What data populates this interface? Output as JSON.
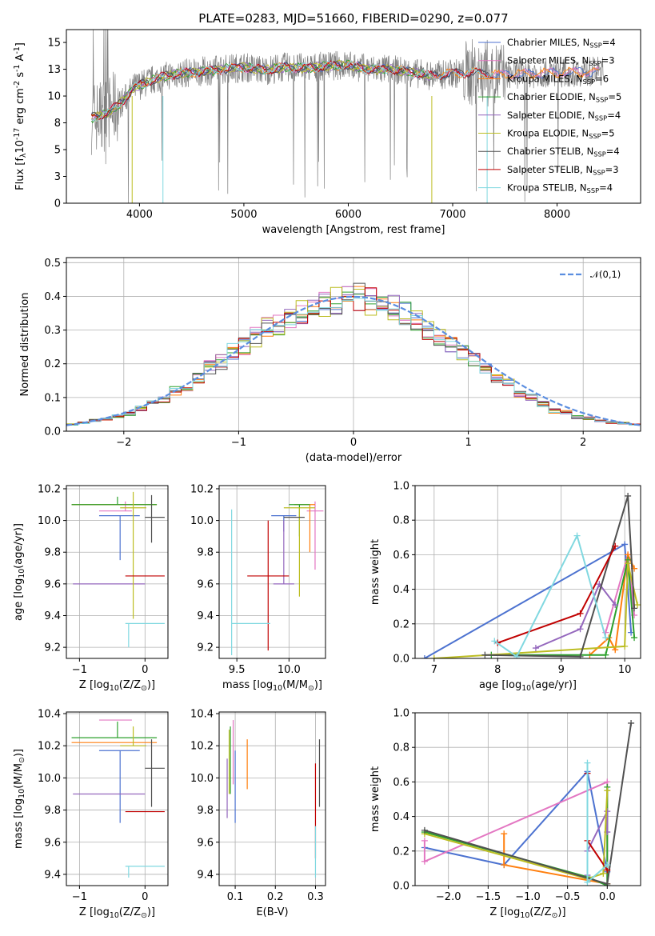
{
  "chart_data": [
    {
      "id": "spectrum",
      "type": "line",
      "title": "PLATE=0283, MJD=51660, FIBERID=0290, z=0.077",
      "xlabel": "wavelength [Angstrom, rest frame]",
      "ylabel": "Flux [f$_{\\lambda}$10$^{-17}$ erg cm$^{-2}$ s$^{-1}$ A$^{-1}$]",
      "xlim": [
        3300,
        8800
      ],
      "ylim": [
        0,
        16.2
      ],
      "xticks": [
        4000,
        5000,
        6000,
        7000,
        8000
      ],
      "yticks": [
        0.0,
        2.5,
        5.0,
        7.5,
        10.0,
        12.5,
        15.0
      ],
      "grid": false,
      "legend_position": "upper right",
      "observed_color": "#808080",
      "continuum": {
        "x": [
          3550,
          3700,
          3850,
          3950,
          4100,
          4300,
          4500,
          4800,
          5000,
          5200,
          5400,
          5600,
          5800,
          6000,
          6200,
          6400,
          6600,
          6800,
          7000,
          7200,
          7400
        ],
        "y": [
          8.0,
          8.4,
          9.6,
          10.8,
          11.4,
          12.0,
          12.2,
          12.5,
          12.7,
          12.4,
          12.7,
          12.6,
          12.8,
          12.9,
          12.5,
          12.5,
          12.2,
          11.9,
          12.1,
          12.2,
          12.0
        ]
      },
      "series": [
        {
          "name": "Chabrier MILES, N$_{SSP}$=4",
          "color": "#4c72d0",
          "x_end": 8400
        },
        {
          "name": "Salpeter MILES, N$_{SSP}$=3",
          "color": "#e377c2",
          "x_end": 8400
        },
        {
          "name": "Kroupa MILES, N$_{SSP}$=6",
          "color": "#ff7f0e",
          "x_end": 8400
        },
        {
          "name": "Chabrier ELODIE, N$_{SSP}$=5",
          "color": "#2ca02c",
          "x_end": 6800
        },
        {
          "name": "Salpeter ELODIE, N$_{SSP}$=4",
          "color": "#9467bd",
          "x_end": 6800
        },
        {
          "name": "Kroupa ELODIE, N$_{SSP}$=5",
          "color": "#bcbd22",
          "x_end": 6800
        },
        {
          "name": "Chabrier STELIB, N$_{SSP}$=4",
          "color": "#505050",
          "x_end": 7400
        },
        {
          "name": "Salpeter STELIB, N$_{SSP}$=3",
          "color": "#c00000",
          "x_end": 7400
        },
        {
          "name": "Kroupa STELIB, N$_{SSP}$=4",
          "color": "#80d8e0",
          "x_end": 7400
        }
      ]
    },
    {
      "id": "residuals",
      "type": "histogram",
      "xlabel": "(data-model)/error",
      "ylabel": "Normed distribution",
      "xlim": [
        -2.5,
        2.5
      ],
      "ylim": [
        0,
        0.515
      ],
      "xticks": [
        -2,
        -1,
        0,
        1,
        2
      ],
      "yticks": [
        0.0,
        0.1,
        0.2,
        0.3,
        0.4,
        0.5
      ],
      "grid": true,
      "legend_position": "upper right",
      "reference": {
        "name": "$\\mathcal{N}(0,1)$",
        "color": "#5b8ee0",
        "style": "dashed"
      },
      "bin_width": 0.1,
      "profile": [
        0.02,
        0.022,
        0.025,
        0.028,
        0.032,
        0.035,
        0.04,
        0.045,
        0.052,
        0.06,
        0.068,
        0.075,
        0.085,
        0.095,
        0.105,
        0.12,
        0.13,
        0.145,
        0.16,
        0.175,
        0.19,
        0.205,
        0.22,
        0.235,
        0.25,
        0.265,
        0.28,
        0.295,
        0.31,
        0.32,
        0.33,
        0.34,
        0.35,
        0.36,
        0.37,
        0.375,
        0.38,
        0.385,
        0.39,
        0.392,
        0.4,
        0.39,
        0.385,
        0.38,
        0.375,
        0.365,
        0.355,
        0.345,
        0.33,
        0.32,
        0.305,
        0.29,
        0.275,
        0.26,
        0.245,
        0.23,
        0.215,
        0.2,
        0.185,
        0.17,
        0.155,
        0.14,
        0.125,
        0.11,
        0.1,
        0.09,
        0.08,
        0.07,
        0.06,
        0.055,
        0.048,
        0.042,
        0.038,
        0.034,
        0.03,
        0.028,
        0.026,
        0.024,
        0.022,
        0.02
      ],
      "profile_x_start": -2.5,
      "profile_step": 0.0625
    },
    {
      "id": "age-vs-Z",
      "type": "errorbar",
      "xlabel": "Z [log$_{10}$(Z/Z$_\\odot$)]",
      "ylabel": "age  [log$_{10}$(age/yr)]",
      "xlim": [
        -1.2,
        0.35
      ],
      "ylim": [
        9.13,
        10.22
      ],
      "xticks": [
        -1,
        0
      ],
      "yticks": [
        9.2,
        9.4,
        9.6,
        9.8,
        10.0,
        10.2
      ],
      "grid": true,
      "points": [
        {
          "color": "#4c72d0",
          "x": -0.38,
          "xerr": [
            0.32,
            0.3
          ],
          "y": 10.03,
          "yerr": [
            0.28,
            0.0
          ]
        },
        {
          "color": "#e377c2",
          "x": -0.3,
          "xerr": [
            0.4,
            0.1
          ],
          "y": 10.06,
          "yerr": [
            0.0,
            0.06
          ]
        },
        {
          "color": "#ff7f0e",
          "x": -0.42,
          "xerr": [
            0.7,
            0.6
          ],
          "y": 10.1,
          "yerr": [
            0.0,
            0.0
          ]
        },
        {
          "color": "#2ca02c",
          "x": -0.42,
          "xerr": [
            0.7,
            0.6
          ],
          "y": 10.1,
          "yerr": [
            0.0,
            0.05
          ]
        },
        {
          "color": "#9467bd",
          "x": -0.45,
          "xerr": [
            0.65,
            0.45
          ],
          "y": 9.6,
          "yerr": [
            0.0,
            0.0
          ]
        },
        {
          "color": "#bcbd22",
          "x": -0.18,
          "xerr": [
            0.2,
            0.2
          ],
          "y": 10.08,
          "yerr": [
            0.7,
            0.1
          ]
        },
        {
          "color": "#505050",
          "x": 0.1,
          "xerr": [
            0.1,
            0.2
          ],
          "y": 10.02,
          "yerr": [
            0.16,
            0.14
          ]
        },
        {
          "color": "#c00000",
          "x": -0.25,
          "xerr": [
            0.05,
            0.55
          ],
          "y": 9.65,
          "yerr": [
            0.0,
            0.0
          ]
        },
        {
          "color": "#80d8e0",
          "x": -0.25,
          "xerr": [
            0.05,
            0.55
          ],
          "y": 9.35,
          "yerr": [
            0.15,
            0.0
          ]
        }
      ]
    },
    {
      "id": "age-vs-mass",
      "type": "errorbar",
      "xlabel": "mass [log$_{10}$(M/M$_\\odot$)]",
      "ylabel": "",
      "xlim": [
        9.33,
        10.35
      ],
      "ylim": [
        9.13,
        10.22
      ],
      "xticks": [
        9.5,
        10.0
      ],
      "yticks": [
        9.2,
        9.4,
        9.6,
        9.8,
        10.0,
        10.2
      ],
      "grid": true,
      "points": [
        {
          "color": "#4c72d0",
          "x": 9.95,
          "xerr": [
            0.12,
            0.12
          ],
          "y": 10.03,
          "yerr": [
            0.1,
            0.0
          ]
        },
        {
          "color": "#e377c2",
          "x": 10.25,
          "xerr": [
            0.08,
            0.08
          ],
          "y": 10.06,
          "yerr": [
            0.37,
            0.06
          ]
        },
        {
          "color": "#ff7f0e",
          "x": 10.2,
          "xerr": [
            0.15,
            0.05
          ],
          "y": 10.1,
          "yerr": [
            0.3,
            0.0
          ]
        },
        {
          "color": "#2ca02c",
          "x": 10.1,
          "xerr": [
            0.1,
            0.1
          ],
          "y": 10.1,
          "yerr": [
            0.2,
            0.0
          ]
        },
        {
          "color": "#9467bd",
          "x": 9.95,
          "xerr": [
            0.1,
            0.1
          ],
          "y": 9.6,
          "yerr": [
            0.0,
            0.4
          ]
        },
        {
          "color": "#bcbd22",
          "x": 10.1,
          "xerr": [
            0.15,
            0.15
          ],
          "y": 10.08,
          "yerr": [
            0.56,
            0.0
          ]
        },
        {
          "color": "#505050",
          "x": 10.05,
          "xerr": [
            0.1,
            0.1
          ],
          "y": 10.02,
          "yerr": [
            0.0,
            0.0
          ]
        },
        {
          "color": "#c00000",
          "x": 9.8,
          "xerr": [
            0.2,
            0.2
          ],
          "y": 9.65,
          "yerr": [
            0.47,
            0.35
          ]
        },
        {
          "color": "#80d8e0",
          "x": 9.45,
          "xerr": [
            0.0,
            0.37
          ],
          "y": 9.35,
          "yerr": [
            0.2,
            0.72
          ]
        }
      ]
    },
    {
      "id": "mass-weight-vs-age",
      "type": "line",
      "xlabel": "age  [log$_{10}$(age/yr)]",
      "ylabel": "mass weight",
      "xlim": [
        6.7,
        10.25
      ],
      "ylim": [
        0,
        1.0
      ],
      "xticks": [
        7,
        8,
        9,
        10
      ],
      "yticks": [
        0.0,
        0.2,
        0.4,
        0.6,
        0.8,
        1.0
      ],
      "grid": true,
      "series": [
        {
          "color": "#4c72d0",
          "x": [
            6.85,
            10.0,
            10.1
          ],
          "y": [
            0.0,
            0.66,
            0.15
          ]
        },
        {
          "color": "#e377c2",
          "x": [
            9.7,
            10.05,
            10.15
          ],
          "y": [
            0.15,
            0.6,
            0.25
          ]
        },
        {
          "color": "#ff7f0e",
          "x": [
            9.45,
            9.75,
            9.85,
            10.05,
            10.15
          ],
          "y": [
            0.02,
            0.12,
            0.05,
            0.6,
            0.52
          ]
        },
        {
          "color": "#2ca02c",
          "x": [
            7.9,
            9.7,
            10.05,
            10.15
          ],
          "y": [
            0.02,
            0.02,
            0.57,
            0.12
          ]
        },
        {
          "color": "#9467bd",
          "x": [
            8.6,
            9.3,
            9.6,
            9.85
          ],
          "y": [
            0.06,
            0.17,
            0.43,
            0.31
          ]
        },
        {
          "color": "#bcbd22",
          "x": [
            7.0,
            10.0,
            10.05,
            10.2
          ],
          "y": [
            0.0,
            0.07,
            0.55,
            0.31
          ]
        },
        {
          "color": "#505050",
          "x": [
            7.8,
            9.3,
            10.05,
            10.15
          ],
          "y": [
            0.02,
            0.01,
            0.94,
            0.29
          ]
        },
        {
          "color": "#c00000",
          "x": [
            8.0,
            9.3,
            9.85
          ],
          "y": [
            0.09,
            0.26,
            0.65
          ]
        },
        {
          "color": "#80d8e0",
          "x": [
            7.95,
            8.3,
            9.25,
            9.7
          ],
          "y": [
            0.1,
            0.01,
            0.71,
            0.12
          ]
        }
      ]
    },
    {
      "id": "mass-vs-Z",
      "type": "errorbar",
      "xlabel": "Z [log$_{10}$(Z/Z$_\\odot$)]",
      "ylabel": "mass [log$_{10}$(M/M$_\\odot$)]",
      "xlim": [
        -1.2,
        0.35
      ],
      "ylim": [
        9.33,
        10.41
      ],
      "xticks": [
        -1,
        0
      ],
      "yticks": [
        9.4,
        9.6,
        9.8,
        10.0,
        10.2,
        10.4
      ],
      "grid": true,
      "points": [
        {
          "color": "#4c72d0",
          "x": -0.38,
          "xerr": [
            0.32,
            0.3
          ],
          "y": 10.17,
          "yerr": [
            0.45,
            0.0
          ]
        },
        {
          "color": "#e377c2",
          "x": -0.3,
          "xerr": [
            0.4,
            0.1
          ],
          "y": 10.36,
          "yerr": [
            0.0,
            0.0
          ]
        },
        {
          "color": "#ff7f0e",
          "x": -0.42,
          "xerr": [
            0.7,
            0.6
          ],
          "y": 10.22,
          "yerr": [
            0.0,
            0.0
          ]
        },
        {
          "color": "#2ca02c",
          "x": -0.42,
          "xerr": [
            0.7,
            0.6
          ],
          "y": 10.25,
          "yerr": [
            0.0,
            0.1
          ]
        },
        {
          "color": "#9467bd",
          "x": -0.45,
          "xerr": [
            0.65,
            0.45
          ],
          "y": 9.9,
          "yerr": [
            0.0,
            0.0
          ]
        },
        {
          "color": "#bcbd22",
          "x": -0.18,
          "xerr": [
            0.2,
            0.2
          ],
          "y": 10.2,
          "yerr": [
            0.0,
            0.12
          ]
        },
        {
          "color": "#505050",
          "x": 0.1,
          "xerr": [
            0.1,
            0.2
          ],
          "y": 10.06,
          "yerr": [
            0.24,
            0.18
          ]
        },
        {
          "color": "#c00000",
          "x": -0.25,
          "xerr": [
            0.05,
            0.55
          ],
          "y": 9.79,
          "yerr": [
            0.0,
            0.0
          ]
        },
        {
          "color": "#80d8e0",
          "x": -0.25,
          "xerr": [
            0.05,
            0.55
          ],
          "y": 9.45,
          "yerr": [
            0.07,
            0.0
          ]
        }
      ]
    },
    {
      "id": "mass-vs-ebv",
      "type": "errorbar",
      "xlabel": "E(B-V)",
      "ylabel": "",
      "xlim": [
        0.06,
        0.325
      ],
      "ylim": [
        9.33,
        10.41
      ],
      "xticks": [
        0.1,
        0.2,
        0.3
      ],
      "yticks": [
        9.4,
        9.6,
        9.8,
        10.0,
        10.2,
        10.4
      ],
      "grid": true,
      "points": [
        {
          "color": "#4c72d0",
          "x": 0.1,
          "y": 10.17,
          "yerr": [
            0.45,
            0.0
          ]
        },
        {
          "color": "#e377c2",
          "x": 0.095,
          "y": 10.36,
          "yerr": [
            0.4,
            0.0
          ]
        },
        {
          "color": "#ff7f0e",
          "x": 0.13,
          "y": 10.08,
          "yerr": [
            0.15,
            0.16
          ]
        },
        {
          "color": "#2ca02c",
          "x": 0.088,
          "y": 10.1,
          "yerr": [
            0.2,
            0.22
          ]
        },
        {
          "color": "#9467bd",
          "x": 0.08,
          "y": 9.95,
          "yerr": [
            0.2,
            0.17
          ]
        },
        {
          "color": "#bcbd22",
          "x": 0.085,
          "y": 10.2,
          "yerr": [
            0.3,
            0.1
          ]
        },
        {
          "color": "#505050",
          "x": 0.31,
          "y": 10.06,
          "yerr": [
            0.24,
            0.18
          ]
        },
        {
          "color": "#c00000",
          "x": 0.3,
          "y": 9.8,
          "yerr": [
            0.3,
            0.29
          ]
        },
        {
          "color": "#80d8e0",
          "x": 0.3,
          "y": 9.45,
          "yerr": [
            0.07,
            0.25
          ]
        }
      ]
    },
    {
      "id": "mass-weight-vs-Z",
      "type": "line",
      "xlabel": "Z [log$_{10}$(Z/Z$_\\odot$)]",
      "ylabel": "mass weight",
      "xlim": [
        -2.42,
        0.42
      ],
      "ylim": [
        0,
        1.0
      ],
      "xticks": [
        -2.0,
        -1.5,
        -1.0,
        -0.5,
        0.0
      ],
      "yticks": [
        0.0,
        0.2,
        0.4,
        0.6,
        0.8,
        1.0
      ],
      "grid": true,
      "series": [
        {
          "color": "#4c72d0",
          "x": [
            -2.3,
            -1.3,
            -0.25,
            0.0
          ],
          "y": [
            0.22,
            0.12,
            0.66,
            0.08
          ]
        },
        {
          "color": "#e377c2",
          "x": [
            -2.3,
            -2.3,
            0.0,
            0.0
          ],
          "y": [
            0.26,
            0.14,
            0.6,
            0.0
          ]
        },
        {
          "color": "#ff7f0e",
          "x": [
            -1.3,
            -1.3,
            0.0
          ],
          "y": [
            0.3,
            0.12,
            0.01
          ]
        },
        {
          "color": "#2ca02c",
          "x": [
            -2.3,
            -0.25,
            0.0,
            0.0
          ],
          "y": [
            0.31,
            0.05,
            0.0,
            0.57
          ]
        },
        {
          "color": "#9467bd",
          "x": [
            -0.25,
            -0.25,
            0.0,
            0.0
          ],
          "y": [
            0.06,
            0.2,
            0.43,
            0.31
          ]
        },
        {
          "color": "#bcbd22",
          "x": [
            -2.3,
            -0.25,
            -0.05,
            0.0
          ],
          "y": [
            0.3,
            0.04,
            0.07,
            0.55
          ]
        },
        {
          "color": "#505050",
          "x": [
            -2.3,
            0.0,
            0.3
          ],
          "y": [
            0.32,
            0.01,
            0.94
          ]
        },
        {
          "color": "#c00000",
          "x": [
            -0.25,
            -0.25,
            0.0
          ],
          "y": [
            0.65,
            0.26,
            0.09
          ]
        },
        {
          "color": "#80d8e0",
          "x": [
            -0.25,
            -0.25,
            0.0
          ],
          "y": [
            0.71,
            0.02,
            0.12
          ]
        }
      ]
    }
  ]
}
